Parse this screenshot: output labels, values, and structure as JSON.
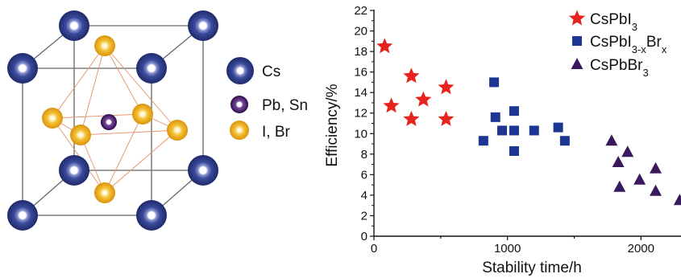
{
  "legend_left": {
    "items": [
      {
        "label": "Cs",
        "color": "#3a4a9c"
      },
      {
        "label": "Pb, Sn",
        "color": "#4a1a6e"
      },
      {
        "label": "I, Br",
        "color": "#f2b21c"
      }
    ]
  },
  "chart_data": {
    "type": "scatter",
    "title": "",
    "xlabel": "Stability time/h",
    "ylabel": "Efficiency/%",
    "xlim": [
      0,
      2300
    ],
    "ylim": [
      0,
      22
    ],
    "xticks": [
      0,
      1000,
      2000
    ],
    "yticks": [
      0,
      2,
      4,
      6,
      8,
      10,
      12,
      14,
      16,
      18,
      20,
      22
    ],
    "grid": false,
    "legend_position": "top-right",
    "series": [
      {
        "name": "CsPbI3",
        "name_parts": [
          {
            "t": "CsPbI",
            "s": ""
          },
          {
            "t": "3",
            "s": "sub"
          }
        ],
        "marker": "star",
        "color": "#e8221c",
        "points": [
          [
            80,
            18.5
          ],
          [
            130,
            12.7
          ],
          [
            280,
            15.6
          ],
          [
            280,
            11.4
          ],
          [
            370,
            13.3
          ],
          [
            540,
            14.5
          ],
          [
            540,
            11.4
          ]
        ]
      },
      {
        "name": "CsPbI3-xBrx",
        "name_parts": [
          {
            "t": "CsPbI",
            "s": ""
          },
          {
            "t": "3-x",
            "s": "sub"
          },
          {
            "t": "Br",
            "s": ""
          },
          {
            "t": "x",
            "s": "sub"
          }
        ],
        "marker": "square",
        "color": "#1d3593",
        "points": [
          [
            820,
            9.3
          ],
          [
            900,
            15.0
          ],
          [
            910,
            11.6
          ],
          [
            960,
            10.3
          ],
          [
            1050,
            12.2
          ],
          [
            1050,
            10.3
          ],
          [
            1050,
            8.3
          ],
          [
            1200,
            10.3
          ],
          [
            1380,
            10.6
          ],
          [
            1430,
            9.3
          ]
        ]
      },
      {
        "name": "CsPbBr3",
        "name_parts": [
          {
            "t": "CsPbBr",
            "s": ""
          },
          {
            "t": "3",
            "s": "sub"
          }
        ],
        "marker": "triangle",
        "color": "#3a1a5c",
        "points": [
          [
            1780,
            9.3
          ],
          [
            1830,
            7.2
          ],
          [
            1840,
            4.8
          ],
          [
            1900,
            8.2
          ],
          [
            1990,
            5.5
          ],
          [
            2110,
            6.6
          ],
          [
            2110,
            4.4
          ],
          [
            2290,
            3.5
          ]
        ]
      }
    ]
  }
}
